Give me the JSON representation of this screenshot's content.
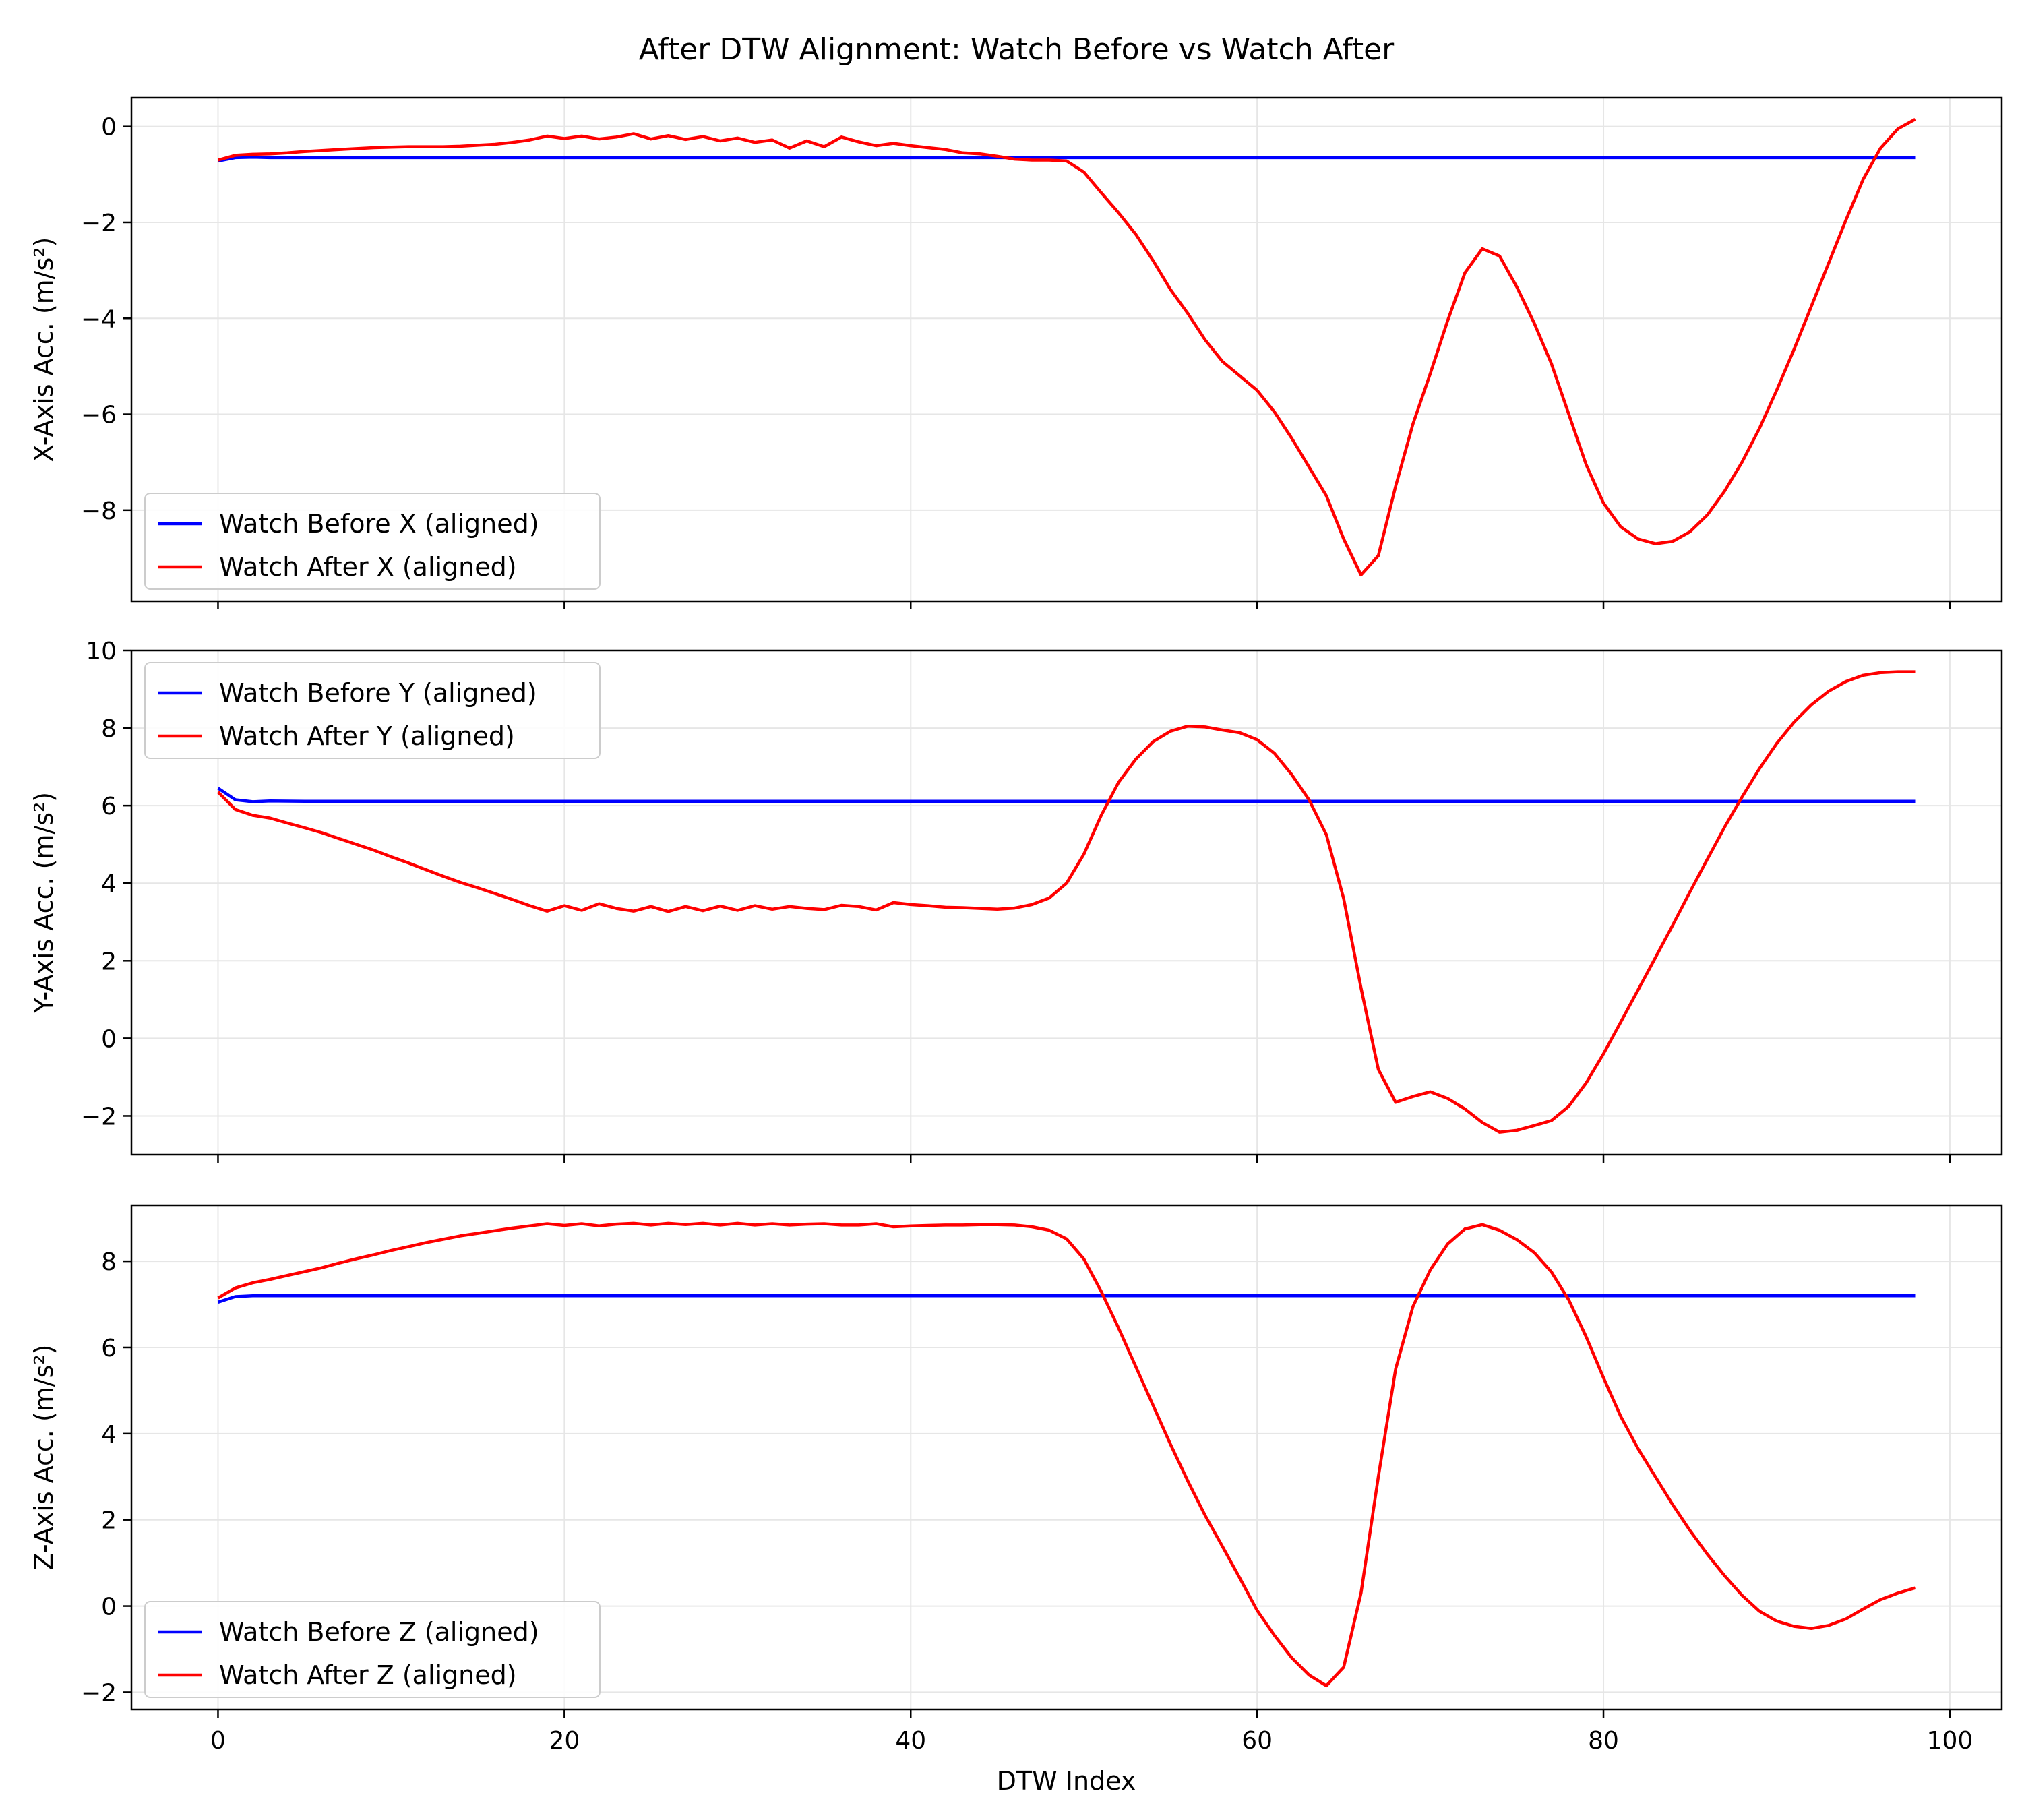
{
  "title": "After DTW Alignment: Watch Before vs Watch After",
  "xlabel": "DTW Index",
  "colors": {
    "before": "#0000ff",
    "after": "#ff0000",
    "grid": "#e6e6e6"
  },
  "chart_data": [
    {
      "type": "line",
      "ylabel": "X-Axis Acc. (m/s²)",
      "xlim": [
        -5,
        103
      ],
      "ylim": [
        -9.9,
        0.6
      ],
      "yticks": [
        0,
        -2,
        -4,
        -6,
        -8
      ],
      "xticks": [
        0,
        20,
        40,
        60,
        80,
        100
      ],
      "legend": "lower-left",
      "grid": true,
      "series": [
        {
          "name": "Watch Before X (aligned)",
          "color": "#0000ff",
          "x": [
            0,
            1,
            2,
            3,
            5,
            10,
            20,
            40,
            60,
            80,
            98
          ],
          "y": [
            -0.72,
            -0.65,
            -0.64,
            -0.65,
            -0.65,
            -0.65,
            -0.65,
            -0.65,
            -0.65,
            -0.65,
            -0.65
          ]
        },
        {
          "name": "Watch After X (aligned)",
          "color": "#ff0000",
          "x": [
            0,
            1,
            2,
            3,
            4,
            5,
            6,
            7,
            8,
            9,
            10,
            11,
            12,
            13,
            14,
            15,
            16,
            17,
            18,
            19,
            20,
            21,
            22,
            23,
            24,
            25,
            26,
            27,
            28,
            29,
            30,
            31,
            32,
            33,
            34,
            35,
            36,
            37,
            38,
            39,
            40,
            41,
            42,
            43,
            44,
            45,
            46,
            47,
            48,
            49,
            50,
            51,
            52,
            53,
            54,
            55,
            56,
            57,
            58,
            59,
            60,
            61,
            62,
            63,
            64,
            65,
            66,
            67,
            68,
            69,
            70,
            71,
            72,
            73,
            74,
            75,
            76,
            77,
            78,
            79,
            80,
            81,
            82,
            83,
            84,
            85,
            86,
            87,
            88,
            89,
            90,
            91,
            92,
            93,
            94,
            95,
            96,
            97,
            98
          ],
          "y": [
            -0.7,
            -0.6,
            -0.58,
            -0.57,
            -0.55,
            -0.52,
            -0.5,
            -0.48,
            -0.46,
            -0.44,
            -0.43,
            -0.42,
            -0.42,
            -0.42,
            -0.41,
            -0.39,
            -0.37,
            -0.33,
            -0.28,
            -0.2,
            -0.25,
            -0.2,
            -0.26,
            -0.22,
            -0.15,
            -0.26,
            -0.19,
            -0.27,
            -0.21,
            -0.3,
            -0.24,
            -0.33,
            -0.28,
            -0.45,
            -0.3,
            -0.42,
            -0.22,
            -0.32,
            -0.4,
            -0.35,
            -0.4,
            -0.44,
            -0.48,
            -0.55,
            -0.57,
            -0.62,
            -0.68,
            -0.7,
            -0.7,
            -0.72,
            -0.95,
            -1.38,
            -1.8,
            -2.25,
            -2.8,
            -3.4,
            -3.9,
            -4.45,
            -4.9,
            -5.2,
            -5.5,
            -5.95,
            -6.5,
            -7.1,
            -7.7,
            -8.6,
            -9.35,
            -8.95,
            -7.5,
            -6.2,
            -5.15,
            -4.05,
            -3.05,
            -2.55,
            -2.7,
            -3.35,
            -4.1,
            -4.95,
            -6.0,
            -7.05,
            -7.85,
            -8.35,
            -8.6,
            -8.7,
            -8.65,
            -8.45,
            -8.1,
            -7.6,
            -7.0,
            -6.3,
            -5.5,
            -4.65,
            -3.75,
            -2.85,
            -1.95,
            -1.1,
            -0.45,
            -0.05,
            0.15
          ]
        }
      ]
    },
    {
      "type": "line",
      "ylabel": "Y-Axis Acc. (m/s²)",
      "xlim": [
        -5,
        103
      ],
      "ylim": [
        -3.0,
        10.0
      ],
      "yticks": [
        10,
        8,
        6,
        4,
        2,
        0,
        -2
      ],
      "xticks": [
        0,
        20,
        40,
        60,
        80,
        100
      ],
      "legend": "upper-left",
      "grid": true,
      "series": [
        {
          "name": "Watch Before Y (aligned)",
          "color": "#0000ff",
          "x": [
            0,
            1,
            2,
            3,
            5,
            10,
            20,
            40,
            60,
            80,
            98
          ],
          "y": [
            6.45,
            6.15,
            6.1,
            6.12,
            6.11,
            6.11,
            6.11,
            6.11,
            6.11,
            6.11,
            6.11
          ]
        },
        {
          "name": "Watch After Y (aligned)",
          "color": "#ff0000",
          "x": [
            0,
            1,
            2,
            3,
            4,
            5,
            6,
            7,
            8,
            9,
            10,
            11,
            12,
            13,
            14,
            15,
            16,
            17,
            18,
            19,
            20,
            21,
            22,
            23,
            24,
            25,
            26,
            27,
            28,
            29,
            30,
            31,
            32,
            33,
            34,
            35,
            36,
            37,
            38,
            39,
            40,
            41,
            42,
            43,
            44,
            45,
            46,
            47,
            48,
            49,
            50,
            51,
            52,
            53,
            54,
            55,
            56,
            57,
            58,
            59,
            60,
            61,
            62,
            63,
            64,
            65,
            66,
            67,
            68,
            69,
            70,
            71,
            72,
            73,
            74,
            75,
            76,
            77,
            78,
            79,
            80,
            81,
            82,
            83,
            84,
            85,
            86,
            87,
            88,
            89,
            90,
            91,
            92,
            93,
            94,
            95,
            96,
            97,
            98
          ],
          "y": [
            6.35,
            5.9,
            5.75,
            5.68,
            5.55,
            5.43,
            5.3,
            5.15,
            5.0,
            4.85,
            4.68,
            4.52,
            4.35,
            4.18,
            4.02,
            3.88,
            3.73,
            3.58,
            3.42,
            3.28,
            3.42,
            3.3,
            3.47,
            3.35,
            3.28,
            3.4,
            3.27,
            3.4,
            3.29,
            3.41,
            3.3,
            3.42,
            3.33,
            3.4,
            3.35,
            3.32,
            3.43,
            3.4,
            3.31,
            3.5,
            3.45,
            3.42,
            3.38,
            3.37,
            3.35,
            3.33,
            3.36,
            3.45,
            3.62,
            4.0,
            4.75,
            5.75,
            6.6,
            7.2,
            7.65,
            7.92,
            8.05,
            8.03,
            7.95,
            7.88,
            7.7,
            7.35,
            6.8,
            6.15,
            5.25,
            3.6,
            1.3,
            -0.8,
            -1.65,
            -1.5,
            -1.38,
            -1.55,
            -1.82,
            -2.17,
            -2.42,
            -2.37,
            -2.25,
            -2.12,
            -1.75,
            -1.15,
            -0.4,
            0.42,
            1.25,
            2.08,
            2.92,
            3.78,
            4.62,
            5.45,
            6.22,
            6.95,
            7.6,
            8.15,
            8.6,
            8.95,
            9.2,
            9.36,
            9.43,
            9.45,
            9.45
          ]
        }
      ]
    },
    {
      "type": "line",
      "ylabel": "Z-Axis Acc. (m/s²)",
      "xlim": [
        -5,
        103
      ],
      "ylim": [
        -2.4,
        9.3
      ],
      "yticks": [
        8,
        6,
        4,
        2,
        0,
        -2
      ],
      "xticks": [
        0,
        20,
        40,
        60,
        80,
        100
      ],
      "legend": "lower-left",
      "grid": true,
      "series": [
        {
          "name": "Watch Before Z (aligned)",
          "color": "#0000ff",
          "x": [
            0,
            1,
            2,
            3,
            5,
            10,
            20,
            40,
            60,
            80,
            98
          ],
          "y": [
            7.05,
            7.18,
            7.2,
            7.2,
            7.2,
            7.2,
            7.2,
            7.2,
            7.2,
            7.2,
            7.2
          ]
        },
        {
          "name": "Watch After Z (aligned)",
          "color": "#ff0000",
          "x": [
            0,
            1,
            2,
            3,
            4,
            5,
            6,
            7,
            8,
            9,
            10,
            11,
            12,
            13,
            14,
            15,
            16,
            17,
            18,
            19,
            20,
            21,
            22,
            23,
            24,
            25,
            26,
            27,
            28,
            29,
            30,
            31,
            32,
            33,
            34,
            35,
            36,
            37,
            38,
            39,
            40,
            41,
            42,
            43,
            44,
            45,
            46,
            47,
            48,
            49,
            50,
            51,
            52,
            53,
            54,
            55,
            56,
            57,
            58,
            59,
            60,
            61,
            62,
            63,
            64,
            65,
            66,
            67,
            68,
            69,
            70,
            71,
            72,
            73,
            74,
            75,
            76,
            77,
            78,
            79,
            80,
            81,
            82,
            83,
            84,
            85,
            86,
            87,
            88,
            89,
            90,
            91,
            92,
            93,
            94,
            95,
            96,
            97,
            98
          ],
          "y": [
            7.15,
            7.38,
            7.5,
            7.58,
            7.67,
            7.76,
            7.85,
            7.96,
            8.06,
            8.15,
            8.25,
            8.34,
            8.43,
            8.51,
            8.59,
            8.65,
            8.71,
            8.77,
            8.82,
            8.87,
            8.83,
            8.87,
            8.82,
            8.86,
            8.88,
            8.84,
            8.88,
            8.85,
            8.88,
            8.84,
            8.88,
            8.84,
            8.87,
            8.84,
            8.86,
            8.87,
            8.84,
            8.84,
            8.87,
            8.8,
            8.82,
            8.83,
            8.84,
            8.84,
            8.85,
            8.85,
            8.84,
            8.8,
            8.72,
            8.52,
            8.05,
            7.3,
            6.45,
            5.55,
            4.65,
            3.75,
            2.9,
            2.1,
            1.38,
            0.65,
            -0.1,
            -0.68,
            -1.2,
            -1.6,
            -1.85,
            -1.42,
            0.3,
            3.0,
            5.5,
            6.95,
            7.8,
            8.4,
            8.75,
            8.85,
            8.72,
            8.5,
            8.2,
            7.75,
            7.1,
            6.25,
            5.3,
            4.4,
            3.65,
            3.0,
            2.35,
            1.75,
            1.2,
            0.7,
            0.25,
            -0.12,
            -0.35,
            -0.47,
            -0.52,
            -0.45,
            -0.3,
            -0.07,
            0.15,
            0.3,
            0.42
          ]
        }
      ]
    }
  ]
}
